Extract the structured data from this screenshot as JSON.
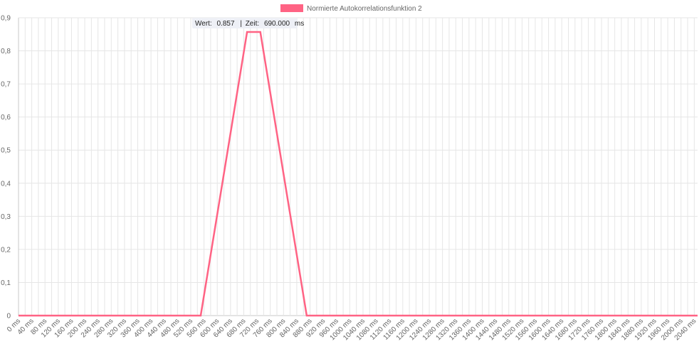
{
  "chart_data": {
    "type": "line",
    "x_unit": "ms",
    "x_start": 0,
    "x_step": 10,
    "x_end": 2050,
    "x_tick_step": 20,
    "x_label_step": 40,
    "ylim": [
      0,
      0.9
    ],
    "y_tick_step": 0.1,
    "grid": true,
    "legend": "top-center",
    "series": [
      {
        "name": "Normierte Autokorrelationsfunktion 2",
        "color": "#ff6384",
        "points": [
          {
            "x": 0,
            "y": 0
          },
          {
            "x": 550,
            "y": 0
          },
          {
            "x": 690,
            "y": 0.857
          },
          {
            "x": 730,
            "y": 0.857
          },
          {
            "x": 870,
            "y": 0
          },
          {
            "x": 2050,
            "y": 0
          }
        ]
      }
    ],
    "tooltip": {
      "value_label": "Wert:",
      "value": "0.857",
      "separator": "|",
      "time_label": "Zeit:",
      "time": "690.000",
      "unit": "ms"
    }
  }
}
